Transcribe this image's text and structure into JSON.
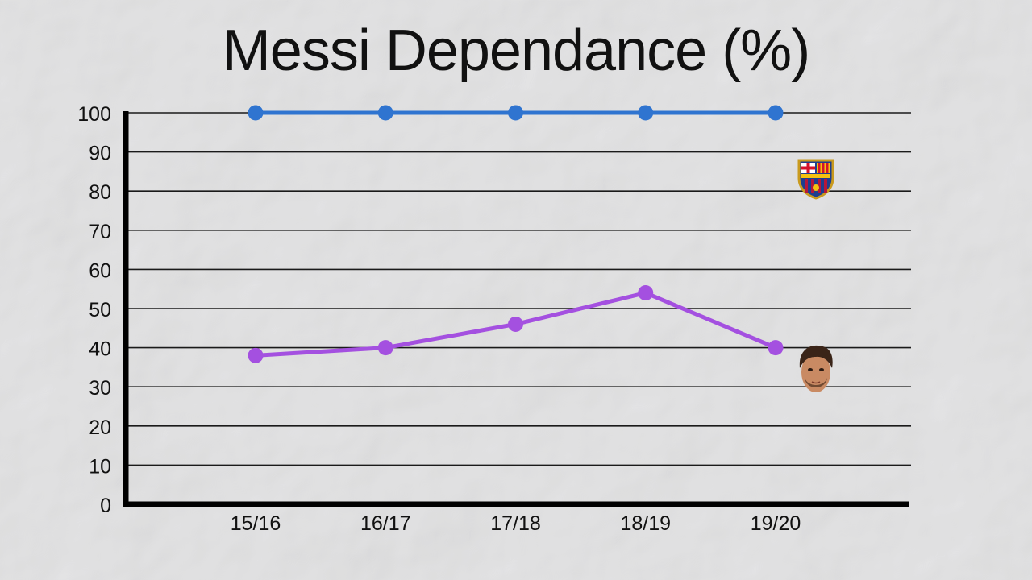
{
  "chart_data": {
    "type": "line",
    "title": "Messi Dependance (%)",
    "xlabel": "",
    "ylabel": "",
    "categories": [
      "15/16",
      "16/17",
      "17/18",
      "18/19",
      "19/20"
    ],
    "ylim": [
      0,
      100
    ],
    "yticks": [
      0,
      10,
      20,
      30,
      40,
      50,
      60,
      70,
      80,
      90,
      100
    ],
    "grid": true,
    "series": [
      {
        "values": [
          100,
          100,
          100,
          100,
          100
        ],
        "color": "#2f74d0",
        "end_marker_icon": "fc-barcelona-crest-icon"
      },
      {
        "values": [
          38,
          40,
          46,
          54,
          40
        ],
        "color": "#a450e0",
        "end_marker_icon": "player-face-icon"
      }
    ]
  }
}
